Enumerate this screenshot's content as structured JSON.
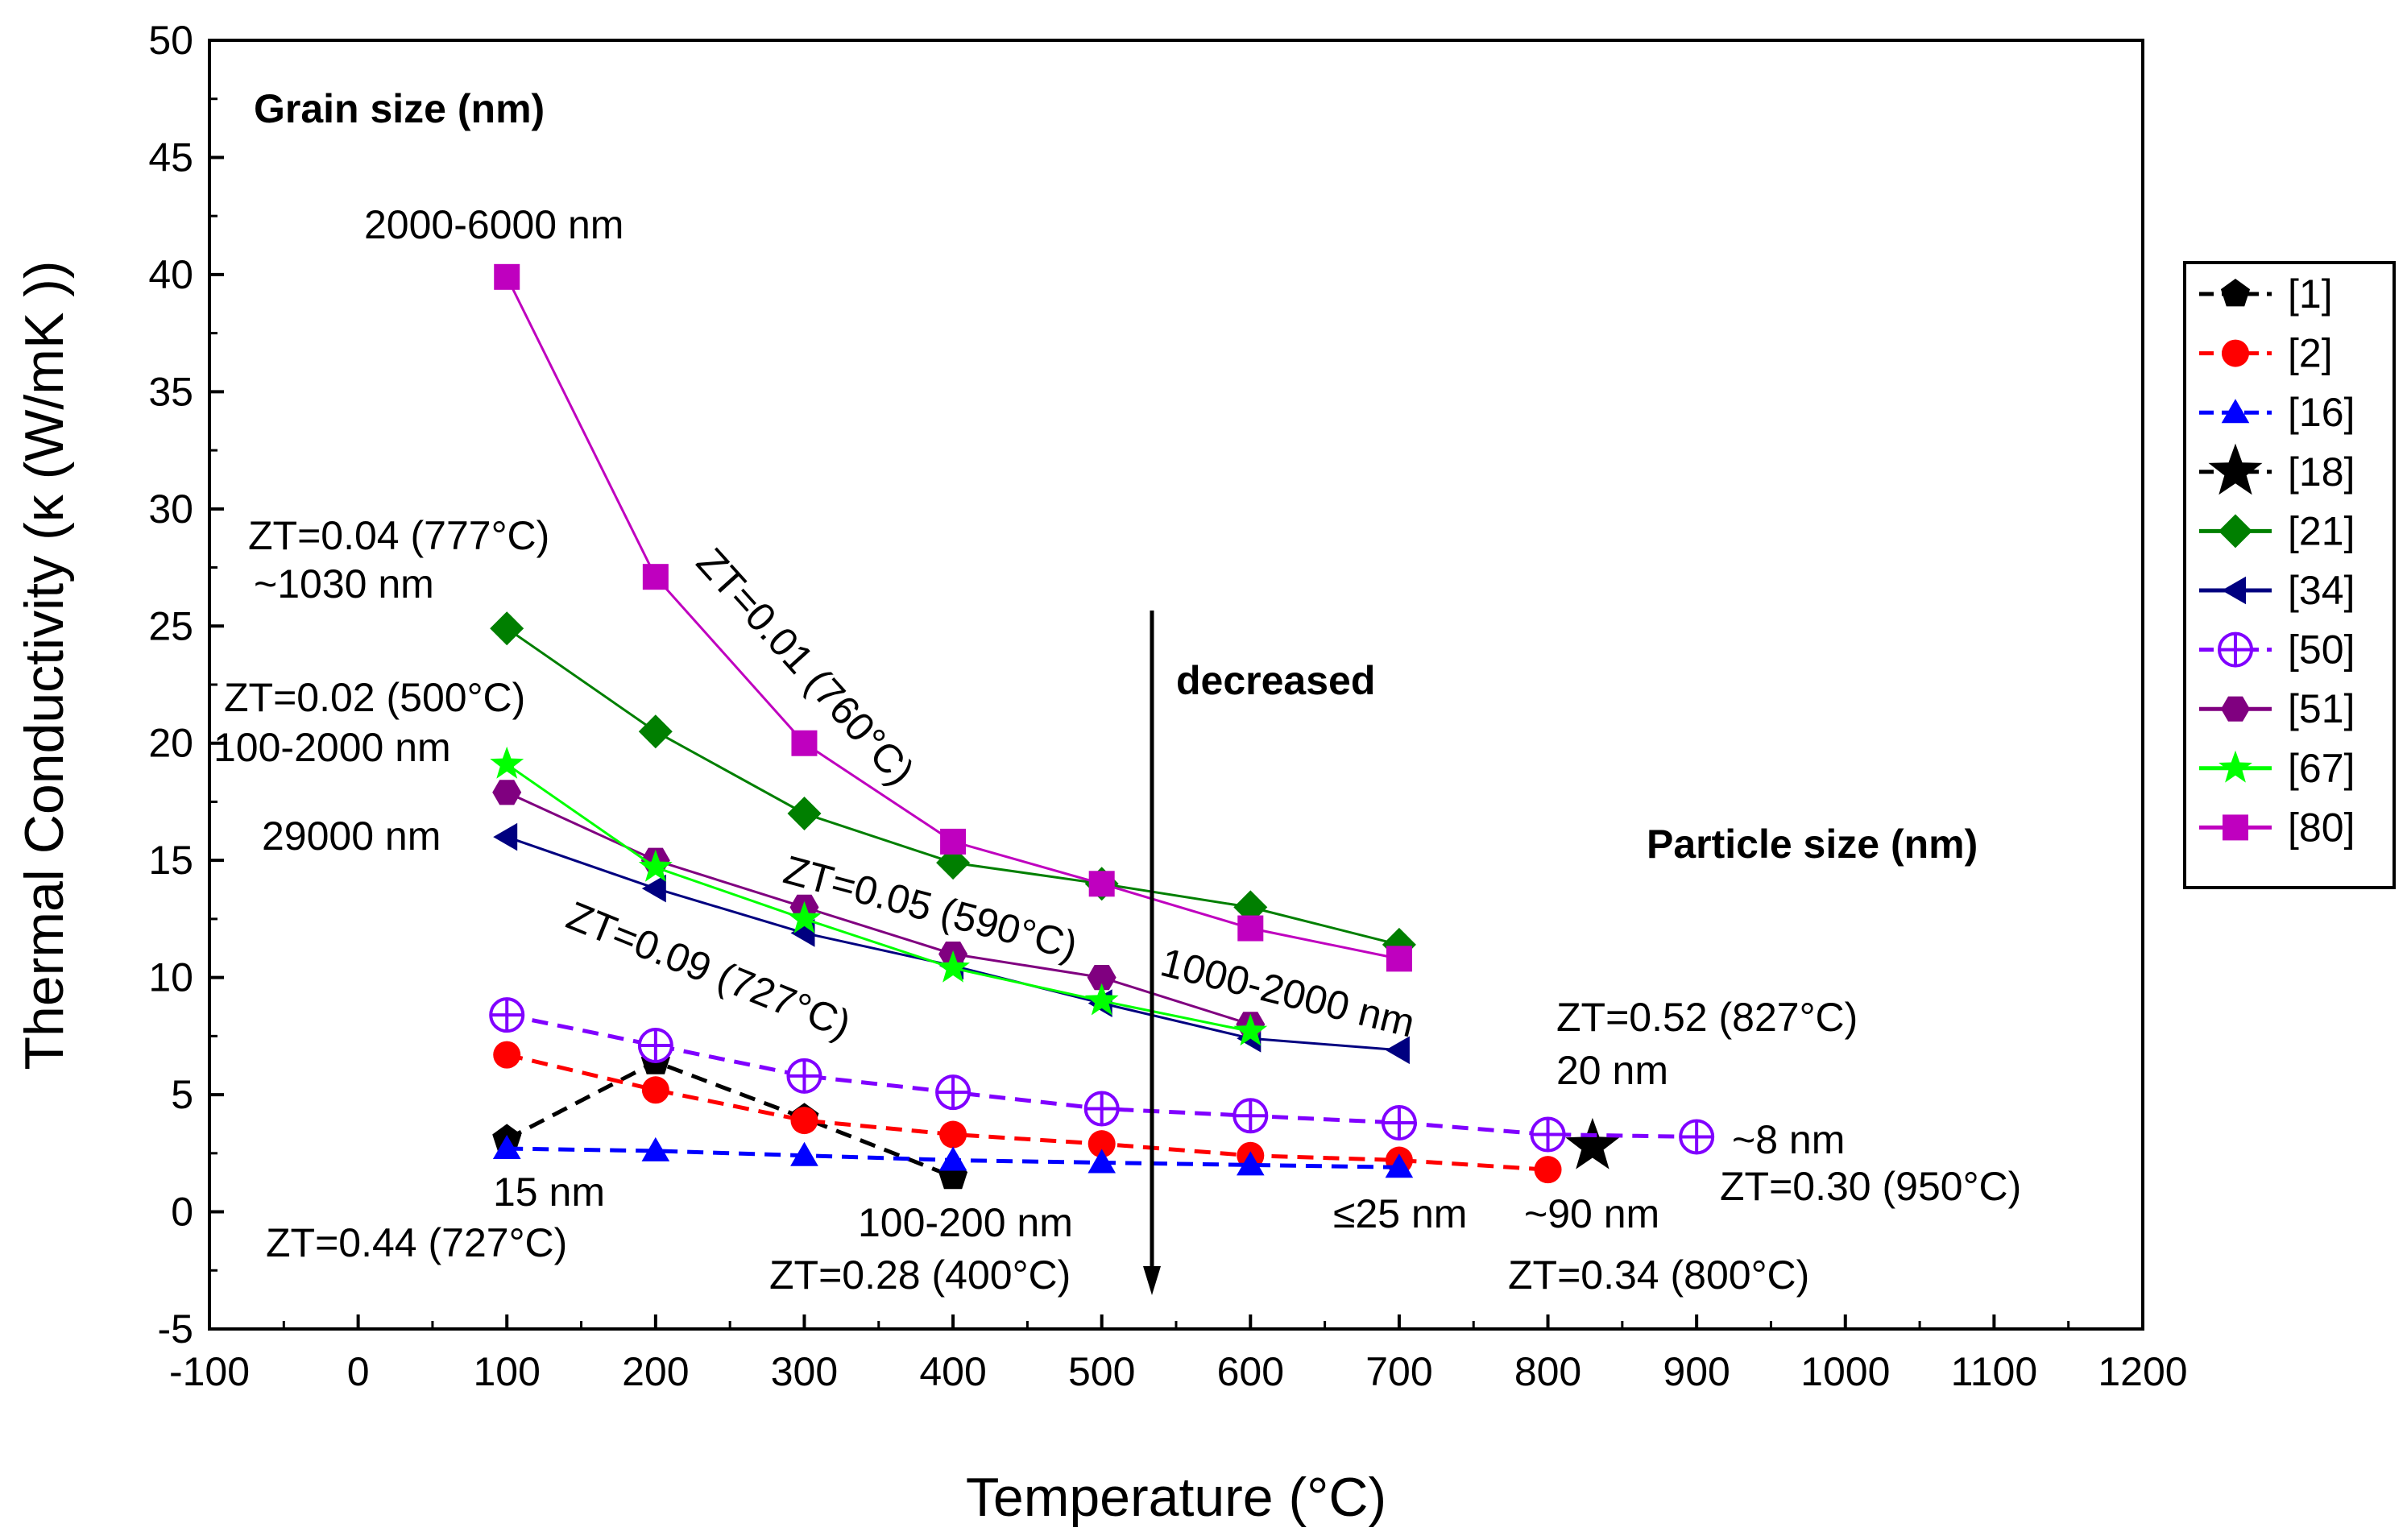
{
  "chart_data": {
    "type": "line",
    "title": "",
    "xlabel": "Temperature (°C)",
    "ylabel": "Thermal Conductivity (κ (W/mK ))",
    "xlim": [
      -100,
      1200
    ],
    "ylim": [
      -5,
      50
    ],
    "xticks": [
      -100,
      0,
      100,
      200,
      300,
      400,
      500,
      600,
      700,
      800,
      900,
      1000,
      1100,
      1200
    ],
    "yticks": [
      -5,
      0,
      5,
      10,
      15,
      20,
      25,
      30,
      35,
      40,
      45,
      50
    ],
    "grid": false,
    "legend_position": "right",
    "series": [
      {
        "name": "[1]",
        "color": "#000000",
        "marker": "pentagon",
        "dashed": true,
        "x": [
          100,
          200,
          300,
          400
        ],
        "y": [
          3.1,
          6.4,
          4.0,
          1.5
        ]
      },
      {
        "name": "[2]",
        "color": "#ff0000",
        "marker": "circle",
        "dashed": true,
        "x": [
          100,
          200,
          300,
          400,
          500,
          600,
          700,
          800
        ],
        "y": [
          6.7,
          5.2,
          3.9,
          3.3,
          2.9,
          2.4,
          2.2,
          1.8
        ]
      },
      {
        "name": "[16]",
        "color": "#0000ff",
        "marker": "triangle-up",
        "dashed": true,
        "x": [
          100,
          200,
          300,
          400,
          500,
          600,
          700
        ],
        "y": [
          2.7,
          2.6,
          2.4,
          2.2,
          2.1,
          2.0,
          1.9
        ]
      },
      {
        "name": "[18]",
        "color": "#000000",
        "marker": "star",
        "dashed": true,
        "x": [
          830
        ],
        "y": [
          2.8
        ]
      },
      {
        "name": "[21]",
        "color": "#007f00",
        "marker": "diamond",
        "dashed": false,
        "x": [
          100,
          200,
          300,
          400,
          500,
          600,
          700
        ],
        "y": [
          24.9,
          20.5,
          17.0,
          14.9,
          14.0,
          13.0,
          11.4
        ]
      },
      {
        "name": "[34]",
        "color": "#000080",
        "marker": "triangle-left",
        "dashed": false,
        "x": [
          100,
          200,
          300,
          400,
          500,
          600,
          700
        ],
        "y": [
          16.0,
          13.8,
          11.9,
          10.5,
          8.9,
          7.4,
          6.9
        ]
      },
      {
        "name": "[50]",
        "color": "#8000ff",
        "marker": "circle-plus",
        "dashed": true,
        "x": [
          100,
          200,
          300,
          400,
          500,
          600,
          700,
          800,
          900
        ],
        "y": [
          8.4,
          7.1,
          5.8,
          5.1,
          4.4,
          4.1,
          3.8,
          3.3,
          3.2
        ]
      },
      {
        "name": "[51]",
        "color": "#800080",
        "marker": "hexagon",
        "dashed": false,
        "x": [
          100,
          200,
          300,
          400,
          500,
          600
        ],
        "y": [
          17.9,
          15.0,
          13.0,
          11.0,
          10.0,
          8.0
        ]
      },
      {
        "name": "[67]",
        "color": "#00ff00",
        "marker": "star",
        "dashed": false,
        "x": [
          100,
          200,
          300,
          400,
          500,
          600
        ],
        "y": [
          19.1,
          14.7,
          12.5,
          10.4,
          9.0,
          7.7
        ]
      },
      {
        "name": "[80]",
        "color": "#bf00bf",
        "marker": "square",
        "dashed": false,
        "x": [
          100,
          200,
          300,
          400,
          500,
          600,
          700
        ],
        "y": [
          39.9,
          27.1,
          20.0,
          15.8,
          14.0,
          12.1,
          10.8
        ]
      }
    ],
    "annotations": {
      "grain_size": "Grain size (nm)",
      "particle_size": "Particle size (nm)",
      "decreased": "decreased",
      "a1": "2000-6000 nm",
      "a2": "ZT=0.04 (777°C)",
      "a3": "~1030 nm",
      "a4": "ZT=0.01 (760°C)",
      "a5": "ZT=0.02 (500°C)",
      "a6": "100-2000 nm",
      "a7": "29000 nm",
      "a8": "ZT=0.05 (590°C)",
      "a9": "ZT=0.09 (727°C)",
      "a10": "1000-2000 nm",
      "a11": "ZT=0.52 (827°C)",
      "a12": "20 nm",
      "a13": "~8 nm",
      "a14": "ZT=0.30 (950°C)",
      "a15": "15 nm",
      "a16": "ZT=0.44 (727°C)",
      "a17": "100-200 nm",
      "a18": "ZT=0.28 (400°C)",
      "a19": "≤25 nm",
      "a20": "~90 nm",
      "a21": "ZT=0.34 (800°C)"
    }
  }
}
